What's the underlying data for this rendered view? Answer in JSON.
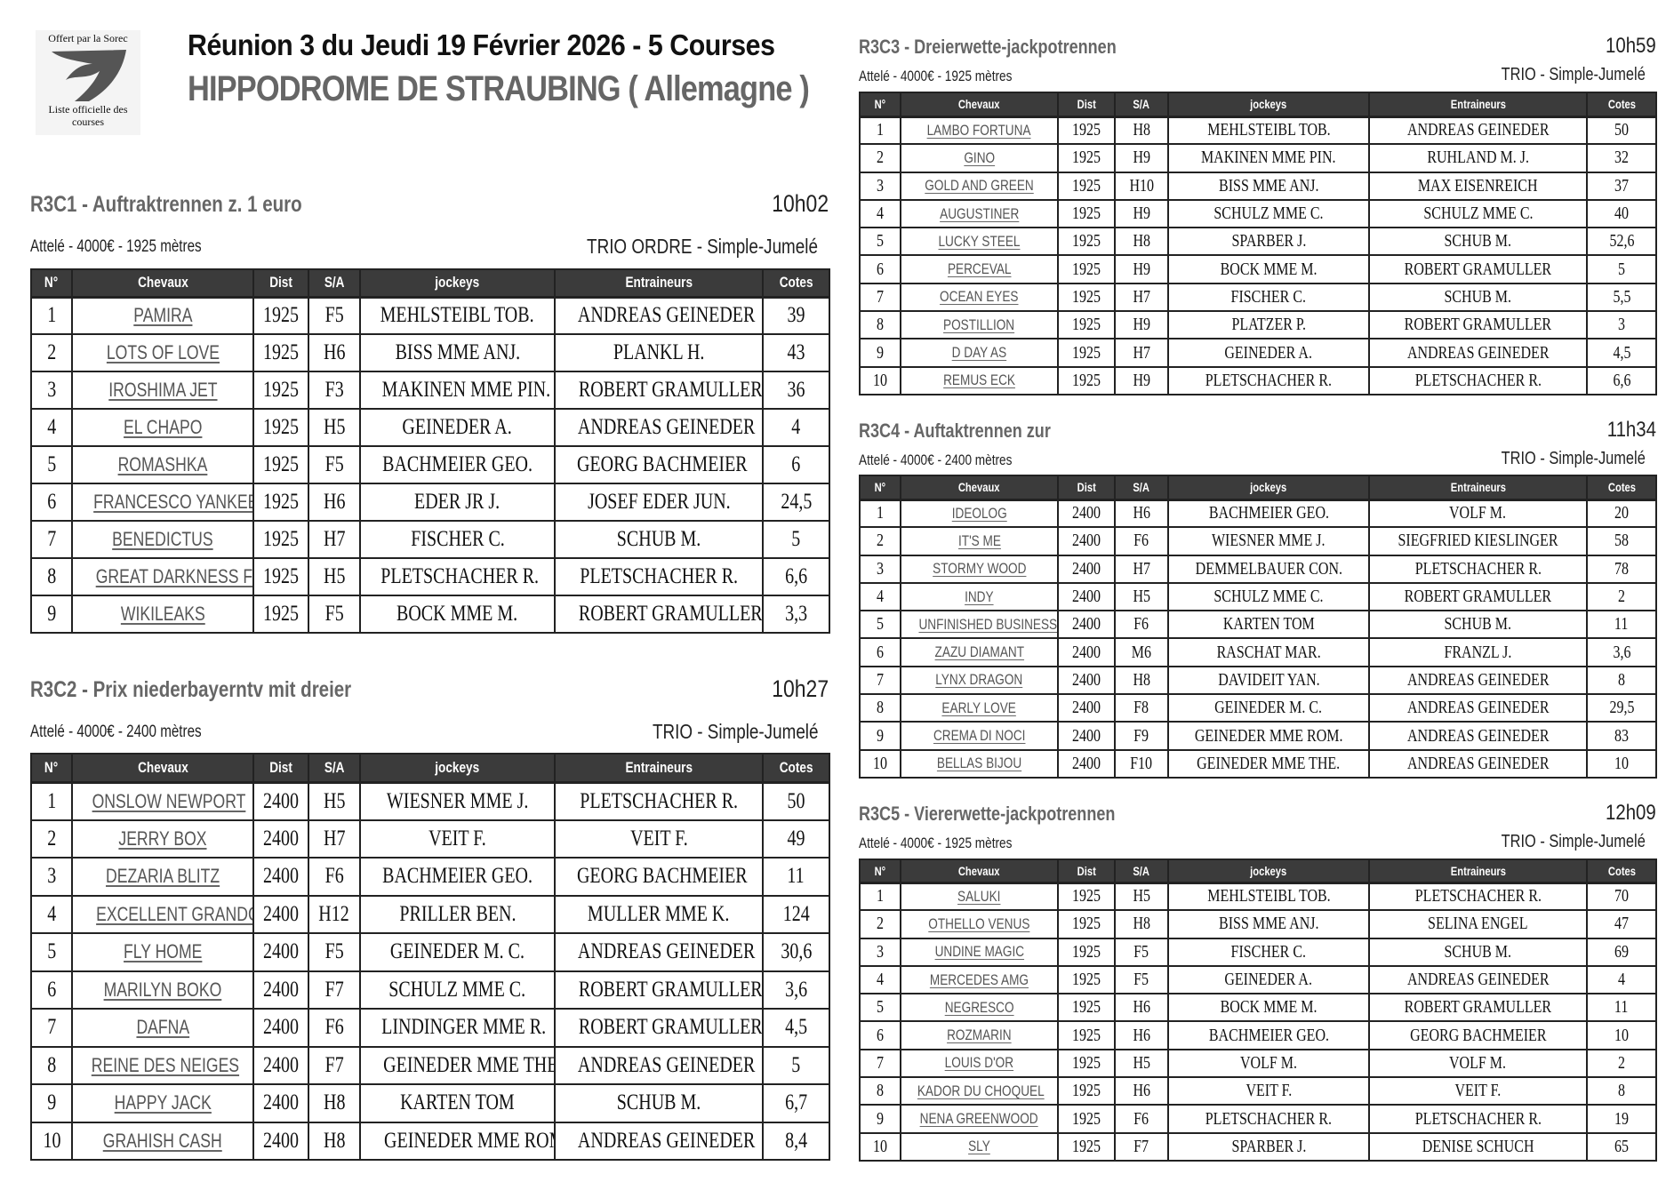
{
  "logo": {
    "top_text": "Offert par la Sorec",
    "bottom_text": "Liste officielle des courses"
  },
  "header": {
    "title": "Réunion 3 du Jeudi 19 Février 2026 - 5 Courses",
    "subtitle": "HIPPODROME DE STRAUBING ( Allemagne )"
  },
  "columns": [
    "N°",
    "Chevaux",
    "Dist",
    "S/A",
    "jockeys",
    "Entraineurs",
    "Cotes"
  ],
  "races": [
    {
      "title": "R3C1 - Auftraktrennen z. 1 euro",
      "time": "10h02",
      "info": "Attelé - 4000€ - 1925 mètres",
      "bets": "TRIO ORDRE  - Simple-Jumelé",
      "rows": [
        [
          "1",
          "PAMIRA",
          "1925",
          "F5",
          "MEHLSTEIBL TOB.",
          "ANDREAS GEINEDER",
          "39"
        ],
        [
          "2",
          "LOTS OF LOVE",
          "1925",
          "H6",
          "BISS MME ANJ.",
          "PLANKL H.",
          "43"
        ],
        [
          "3",
          "IROSHIMA JET",
          "1925",
          "F3",
          "MAKINEN MME PIN.",
          "ROBERT GRAMULLER",
          "36"
        ],
        [
          "4",
          "EL CHAPO",
          "1925",
          "H5",
          "GEINEDER A.",
          "ANDREAS GEINEDER",
          "4"
        ],
        [
          "5",
          "ROMASHKA",
          "1925",
          "F5",
          "BACHMEIER GEO.",
          "GEORG BACHMEIER",
          "6"
        ],
        [
          "6",
          "FRANCESCO YANKEE",
          "1925",
          "H6",
          "EDER JR J.",
          "JOSEF EDER JUN.",
          "24,5"
        ],
        [
          "7",
          "BENEDICTUS",
          "1925",
          "H7",
          "FISCHER C.",
          "SCHUB M.",
          "5"
        ],
        [
          "8",
          "GREAT DARKNESS FIRE",
          "1925",
          "H5",
          "PLETSCHACHER R.",
          "PLETSCHACHER R.",
          "6,6"
        ],
        [
          "9",
          "WIKILEAKS",
          "1925",
          "F5",
          "BOCK MME M.",
          "ROBERT GRAMULLER",
          "3,3"
        ]
      ]
    },
    {
      "title": "R3C2 - Prix niederbayerntv mit dreier",
      "time": "10h27",
      "info": "Attelé - 4000€ - 2400 mètres",
      "bets": "TRIO   - Simple-Jumelé",
      "rows": [
        [
          "1",
          "ONSLOW NEWPORT",
          "2400",
          "H5",
          "WIESNER MME J.",
          "PLETSCHACHER R.",
          "50"
        ],
        [
          "2",
          "JERRY BOX",
          "2400",
          "H7",
          "VEIT F.",
          "VEIT F.",
          "49"
        ],
        [
          "3",
          "DEZARIA BLITZ",
          "2400",
          "F6",
          "BACHMEIER GEO.",
          "GEORG BACHMEIER",
          "11"
        ],
        [
          "4",
          "EXCELLENT GRANDCRU",
          "2400",
          "H12",
          "PRILLER BEN.",
          "MULLER MME K.",
          "124"
        ],
        [
          "5",
          "FLY HOME",
          "2400",
          "F5",
          "GEINEDER M. C.",
          "ANDREAS GEINEDER",
          "30,6"
        ],
        [
          "6",
          "MARILYN BOKO",
          "2400",
          "F7",
          "SCHULZ MME C.",
          "ROBERT GRAMULLER",
          "3,6"
        ],
        [
          "7",
          "DAFNA",
          "2400",
          "F6",
          "LINDINGER MME R.",
          "ROBERT GRAMULLER",
          "4,5"
        ],
        [
          "8",
          "REINE DES NEIGES",
          "2400",
          "F7",
          "GEINEDER MME THE.",
          "ANDREAS GEINEDER",
          "5"
        ],
        [
          "9",
          "HAPPY JACK",
          "2400",
          "H8",
          "KARTEN TOM",
          "SCHUB M.",
          "6,7"
        ],
        [
          "10",
          "GRAHISH CASH",
          "2400",
          "H8",
          "GEINEDER MME ROM.",
          "ANDREAS GEINEDER",
          "8,4"
        ]
      ]
    },
    {
      "title": "R3C3 - Dreierwette-jackpotrennen",
      "time": "10h59",
      "info": "Attelé - 4000€ - 1925 mètres",
      "bets": "TRIO   - Simple-Jumelé",
      "rows": [
        [
          "1",
          "LAMBO FORTUNA",
          "1925",
          "H8",
          "MEHLSTEIBL TOB.",
          "ANDREAS GEINEDER",
          "50"
        ],
        [
          "2",
          "GINO",
          "1925",
          "H9",
          "MAKINEN MME PIN.",
          "RUHLAND M. J.",
          "32"
        ],
        [
          "3",
          "GOLD AND GREEN",
          "1925",
          "H10",
          "BISS MME ANJ.",
          "MAX EISENREICH",
          "37"
        ],
        [
          "4",
          "AUGUSTINER",
          "1925",
          "H9",
          "SCHULZ MME C.",
          "SCHULZ MME C.",
          "40"
        ],
        [
          "5",
          "LUCKY STEEL",
          "1925",
          "H8",
          "SPARBER J.",
          "SCHUB M.",
          "52,6"
        ],
        [
          "6",
          "PERCEVAL",
          "1925",
          "H9",
          "BOCK MME M.",
          "ROBERT GRAMULLER",
          "5"
        ],
        [
          "7",
          "OCEAN EYES",
          "1925",
          "H7",
          "FISCHER C.",
          "SCHUB M.",
          "5,5"
        ],
        [
          "8",
          "POSTILLION",
          "1925",
          "H9",
          "PLATZER P.",
          "ROBERT GRAMULLER",
          "3"
        ],
        [
          "9",
          "D DAY AS",
          "1925",
          "H7",
          "GEINEDER A.",
          "ANDREAS GEINEDER",
          "4,5"
        ],
        [
          "10",
          "REMUS ECK",
          "1925",
          "H9",
          "PLETSCHACHER R.",
          "PLETSCHACHER R.",
          "6,6"
        ]
      ]
    },
    {
      "title": "R3C4 - Auftaktrennen zur",
      "time": "11h34",
      "info": "Attelé - 4000€ - 2400 mètres",
      "bets": "TRIO   - Simple-Jumelé",
      "rows": [
        [
          "1",
          "IDEOLOG",
          "2400",
          "H6",
          "BACHMEIER GEO.",
          "VOLF M.",
          "20"
        ],
        [
          "2",
          "IT'S ME",
          "2400",
          "F6",
          "WIESNER MME J.",
          "SIEGFRIED KIESLINGER",
          "58"
        ],
        [
          "3",
          "STORMY WOOD",
          "2400",
          "H7",
          "DEMMELBAUER CON.",
          "PLETSCHACHER R.",
          "78"
        ],
        [
          "4",
          "INDY",
          "2400",
          "H5",
          "SCHULZ MME C.",
          "ROBERT GRAMULLER",
          "2"
        ],
        [
          "5",
          "UNFINISHED BUSINESS",
          "2400",
          "F6",
          "KARTEN TOM",
          "SCHUB M.",
          "11"
        ],
        [
          "6",
          "ZAZU DIAMANT",
          "2400",
          "M6",
          "RASCHAT MAR.",
          "FRANZL J.",
          "3,6"
        ],
        [
          "7",
          "LYNX DRAGON",
          "2400",
          "H8",
          "DAVIDEIT YAN.",
          "ANDREAS GEINEDER",
          "8"
        ],
        [
          "8",
          "EARLY LOVE",
          "2400",
          "F8",
          "GEINEDER M. C.",
          "ANDREAS GEINEDER",
          "29,5"
        ],
        [
          "9",
          "CREMA DI NOCI",
          "2400",
          "F9",
          "GEINEDER MME ROM.",
          "ANDREAS GEINEDER",
          "83"
        ],
        [
          "10",
          "BELLAS BIJOU",
          "2400",
          "F10",
          "GEINEDER MME THE.",
          "ANDREAS GEINEDER",
          "10"
        ]
      ]
    },
    {
      "title": "R3C5 - Viererwette-jackpotrennen",
      "time": "12h09",
      "info": "Attelé - 4000€ - 1925 mètres",
      "bets": "TRIO   - Simple-Jumelé",
      "rows": [
        [
          "1",
          "SALUKI",
          "1925",
          "H5",
          "MEHLSTEIBL TOB.",
          "PLETSCHACHER R.",
          "70"
        ],
        [
          "2",
          "OTHELLO VENUS",
          "1925",
          "H8",
          "BISS MME ANJ.",
          "SELINA ENGEL",
          "47"
        ],
        [
          "3",
          "UNDINE MAGIC",
          "1925",
          "F5",
          "FISCHER C.",
          "SCHUB M.",
          "69"
        ],
        [
          "4",
          "MERCEDES AMG",
          "1925",
          "F5",
          "GEINEDER A.",
          "ANDREAS GEINEDER",
          "4"
        ],
        [
          "5",
          "NEGRESCO",
          "1925",
          "H6",
          "BOCK MME M.",
          "ROBERT GRAMULLER",
          "11"
        ],
        [
          "6",
          "ROZMARIN",
          "1925",
          "H6",
          "BACHMEIER GEO.",
          "GEORG BACHMEIER",
          "10"
        ],
        [
          "7",
          "LOUIS D'OR",
          "1925",
          "H5",
          "VOLF M.",
          "VOLF M.",
          "2"
        ],
        [
          "8",
          "KADOR DU CHOQUEL",
          "1925",
          "H6",
          "VEIT F.",
          "VEIT F.",
          "8"
        ],
        [
          "9",
          "NENA GREENWOOD",
          "1925",
          "F6",
          "PLETSCHACHER R.",
          "PLETSCHACHER R.",
          "19"
        ],
        [
          "10",
          "SLY",
          "1925",
          "F7",
          "SPARBER J.",
          "DENISE SCHUCH",
          "65"
        ]
      ]
    }
  ]
}
